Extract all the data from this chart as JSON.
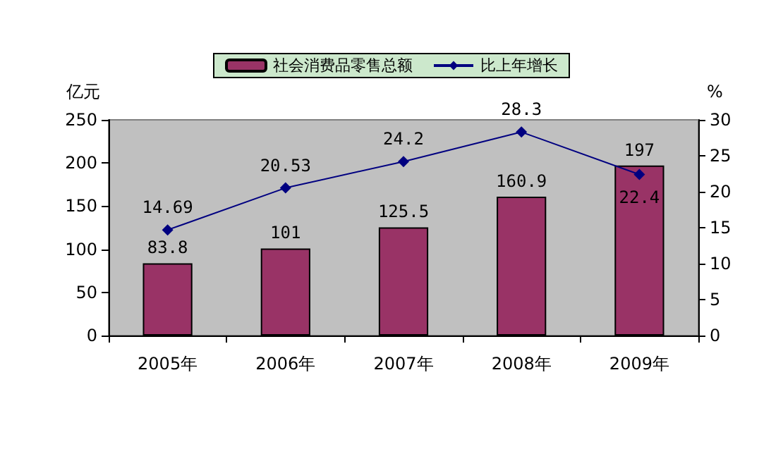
{
  "chart_data": {
    "type": "bar",
    "categories": [
      "2005年",
      "2006年",
      "2007年",
      "2008年",
      "2009年"
    ],
    "series": [
      {
        "name": "社会消费品零售总额",
        "color": "#993366",
        "values": [
          83.8,
          101,
          125.5,
          160.9,
          197
        ]
      },
      {
        "name": "比上年增长",
        "type": "line",
        "axis": "y2",
        "color": "#000080",
        "marker": "diamond",
        "values": [
          14.69,
          20.53,
          24.2,
          28.3,
          22.4
        ]
      }
    ],
    "ylabel": "亿元",
    "y2label": "%",
    "ylim": [
      0,
      250
    ],
    "yticks": [
      0,
      50,
      100,
      150,
      200,
      250
    ],
    "y2lim": [
      0,
      30
    ],
    "y2ticks": [
      0,
      5,
      10,
      15,
      20,
      25,
      30
    ],
    "data_labels": true,
    "grid": false,
    "legend": "top"
  }
}
